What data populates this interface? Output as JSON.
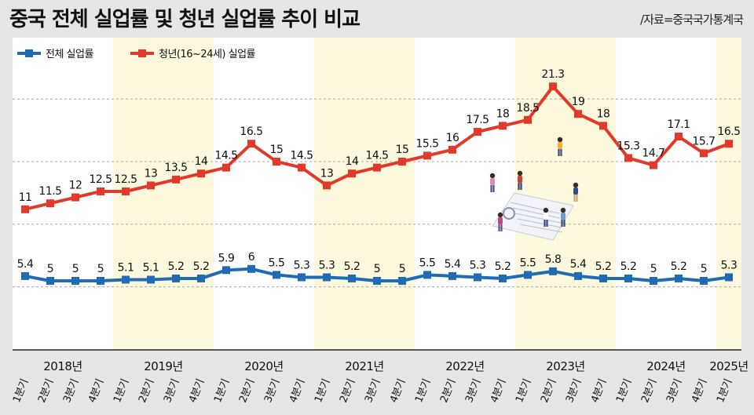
{
  "title": "중국 전체 실업률 및 청년 실업률 추이 비교",
  "source": "/자료=중국국가통계국",
  "colors": {
    "total": "#1f6cb5",
    "youth": "#e23a2a",
    "band": "#fbf8dd",
    "plot_bg": "#ffffff",
    "grid": "#a9a9a9"
  },
  "illustration": "people-and-report-illustration",
  "chart_data": {
    "type": "line",
    "legend_position": "top-left",
    "grid": true,
    "ylim": [
      0,
      24
    ],
    "years": [
      "2018년",
      "2019년",
      "2020년",
      "2021년",
      "2022년",
      "2023년",
      "2024년",
      "2025년"
    ],
    "categories": [
      "1분기",
      "2분기",
      "3분기",
      "4분기",
      "1분기",
      "2분기",
      "3분기",
      "4분기",
      "1분기",
      "2분기",
      "3분기",
      "4분기",
      "1분기",
      "2분기",
      "3분기",
      "4분기",
      "1분기",
      "2분기",
      "3분기",
      "4분기",
      "1분기",
      "2분기",
      "3분기",
      "4분기",
      "1분기",
      "2분기",
      "3분기",
      "4분기",
      "1분기"
    ],
    "series": [
      {
        "name": "전체 실업률",
        "key": "total",
        "values": [
          5.4,
          5,
          5,
          5,
          5.1,
          5.1,
          5.2,
          5.2,
          5.9,
          6,
          5.5,
          5.3,
          5.3,
          5.2,
          5,
          5,
          5.5,
          5.4,
          5.3,
          5.2,
          5.5,
          5.8,
          5.4,
          5.2,
          5.2,
          5,
          5.2,
          5,
          5.3
        ],
        "labels": [
          "5.4",
          "5",
          "5",
          "5",
          "5.1",
          "5.1",
          "5.2",
          "5.2",
          "5.9",
          "6",
          "5.5",
          "5.3",
          "5.3",
          "5.2",
          "5",
          "5",
          "5.5",
          "5.4",
          "5.3",
          "5.2",
          "5.5",
          "5.8",
          "5.4",
          "5.2",
          "5.2",
          "5",
          "5.2",
          "5",
          "5.3"
        ]
      },
      {
        "name": "청년(16~24세) 실업률",
        "key": "youth",
        "values": [
          11,
          11.5,
          12,
          12.5,
          12.5,
          13,
          13.5,
          14,
          14.5,
          16.5,
          15,
          14.5,
          13,
          14,
          14.5,
          15,
          15.5,
          16,
          17.5,
          18,
          18.5,
          21.3,
          19,
          18,
          15.3,
          14.7,
          17.1,
          15.7,
          16.5
        ],
        "labels": [
          "11",
          "11.5",
          "12",
          "12.5",
          "12.5",
          "13",
          "13.5",
          "14",
          "14.5",
          "16.5",
          "15",
          "14.5",
          "13",
          "14",
          "14.5",
          "15",
          "15.5",
          "16",
          "17.5",
          "18",
          "18.5",
          "21.3",
          "19",
          "18",
          "15.3",
          "14.7",
          "17.1",
          "15.7",
          "16.5"
        ]
      }
    ]
  }
}
